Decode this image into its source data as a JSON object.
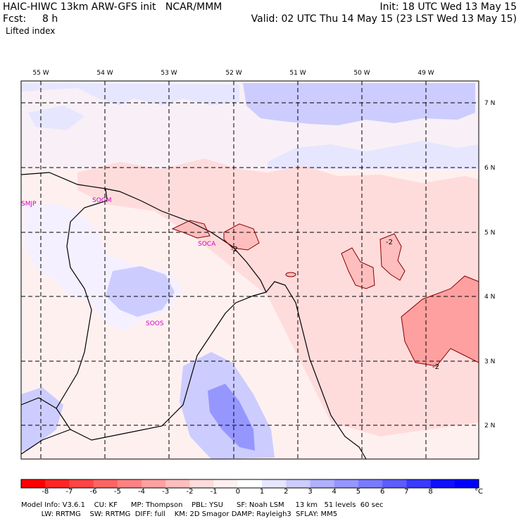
{
  "header": {
    "title": "HAIC-HIWC 13km ARW-GFS init   NCAR/MMM",
    "init": "Init: 18 UTC Wed 13 May 15",
    "fcst_label": "Fcst:",
    "fcst_value": "8 h",
    "valid": "Valid: 02 UTC Thu 14 May 15 (23 LST Wed 13 May 15)",
    "field": "Lifted index"
  },
  "map": {
    "lon_labels": [
      "55 W",
      "54 W",
      "53 W",
      "52 W",
      "51 W",
      "50 W",
      "49 W"
    ],
    "lat_labels": [
      "7 N",
      "6 N",
      "5 N",
      "4 N",
      "3 N",
      "2 N"
    ],
    "stations": [
      "SMJP",
      "SOGM",
      "SOCA",
      "SOOS"
    ],
    "contour_labels": [
      "-2",
      "-2",
      "-2"
    ]
  },
  "colorbar": {
    "colors": [
      "#ff0000",
      "#ff2626",
      "#ff4444",
      "#ff6464",
      "#ff8282",
      "#ffa0a0",
      "#ffbebe",
      "#ffdcdc",
      "#fff0f0",
      "#ffffff",
      "#e6e6ff",
      "#ccccff",
      "#b0b0ff",
      "#9696ff",
      "#7a7aff",
      "#5c5cff",
      "#3a3aff",
      "#1010ff",
      "#0000ff"
    ],
    "labels": [
      "-8",
      "-7",
      "-6",
      "-5",
      "-4",
      "-3",
      "-2",
      "-1",
      "0",
      "1",
      "2",
      "3",
      "4",
      "5",
      "6",
      "7",
      "8"
    ],
    "unit": "°C"
  },
  "footer": {
    "line1": "Model Info: V3.6.1    CU: KF      MP: Thompson    PBL: YSU      SF: Noah LSM     13 km   51 levels  60 sec",
    "line2": "         LW: RRTMG    SW: RRTMG  DIFF: full    KM: 2D Smagor DAMP: Rayleigh3  SFLAY: MM5"
  }
}
